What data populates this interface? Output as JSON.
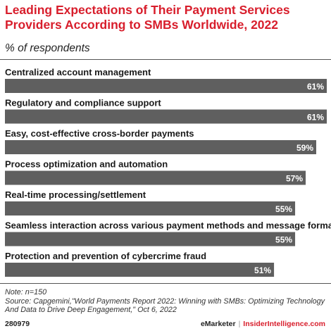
{
  "title": "Leading Expectations of Their Payment Services Providers According to SMBs Worldwide, 2022",
  "subtitle": "% of respondents",
  "note": "Note: n=150",
  "source": "Source: Capgemini,\"World Payments Report 2022: Winning with SMBs: Optimizing Technology And Data to Drive Deep Engagement,\" Oct 6, 2022",
  "footer": {
    "id": "280979",
    "brand": "eMarketer",
    "separator": "|",
    "brand2": "InsiderIntelligence.com"
  },
  "colors": {
    "title": "#d81e2c",
    "bar": "#5f5f5f",
    "value_label": "#ffffff"
  },
  "chart_data": {
    "type": "bar",
    "orientation": "horizontal",
    "categories": [
      "Centralized account management",
      "Regulatory and compliance support",
      "Easy, cost-effective cross-border payments",
      "Process optimization and automation",
      "Real-time processing/settlement",
      "Seamless interaction across various payment methods and message formats",
      "Protection and prevention of cybercrime fraud"
    ],
    "values": [
      61,
      61,
      59,
      57,
      55,
      55,
      51
    ],
    "value_labels": [
      "61%",
      "61%",
      "59%",
      "57%",
      "55%",
      "55%",
      "51%"
    ],
    "unit": "%",
    "xlim": [
      0,
      61
    ]
  }
}
